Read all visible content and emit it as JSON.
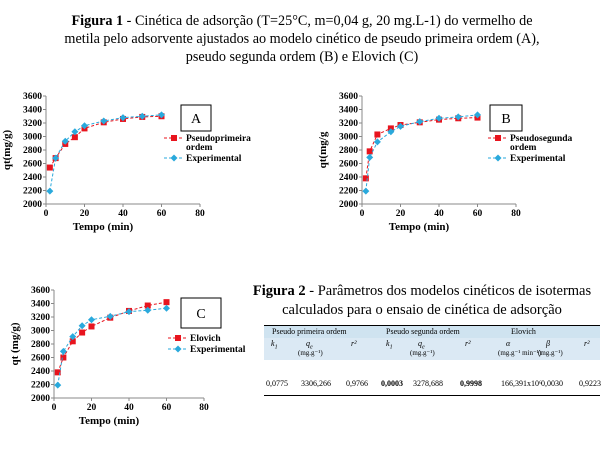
{
  "figure1": {
    "caption_bold": "Figura 1",
    "caption_rest_line1": " - Cinética de adsorção (T=25°C, m=0,04 g, 20 mg.L-1) do vermelho de",
    "caption_line2": "metila pelo adsorvente ajustados ao modelo cinético de pseudo primeira ordem (A),",
    "caption_line3": "pseudo segunda ordem (B) e Elovich (C)"
  },
  "figure2": {
    "caption_bold": "Figura 2",
    "caption_rest_line1": " - Parâmetros dos modelos cinéticos de isotermas",
    "caption_line2": "calculados para o ensaio de cinética de adsorção"
  },
  "chart_data": [
    {
      "type": "line",
      "panel_label": "A",
      "xlabel": "Tempo (min)",
      "ylabel": "qt(mg/g)",
      "xlim": [
        0,
        80
      ],
      "ylim": [
        2000,
        3600
      ],
      "xticks": [
        "0",
        "20",
        "40",
        "60",
        "80"
      ],
      "yticks": [
        "2000",
        "2200",
        "2400",
        "2600",
        "2800",
        "3000",
        "3200",
        "3400",
        "3600"
      ],
      "legend_position": "right",
      "colors": {
        "model": "#e8141e",
        "experimental": "#2aa9dc"
      },
      "series": [
        {
          "name": "Pseudoprimeira ordem",
          "x": [
            2,
            5,
            10,
            15,
            20,
            30,
            40,
            50,
            60
          ],
          "y": [
            2540,
            2680,
            2890,
            2990,
            3120,
            3210,
            3260,
            3290,
            3300
          ]
        },
        {
          "name": "Experimental",
          "x": [
            2,
            5,
            10,
            15,
            20,
            30,
            40,
            50,
            60
          ],
          "y": [
            2190,
            2680,
            2930,
            3070,
            3160,
            3230,
            3280,
            3300,
            3320
          ]
        }
      ]
    },
    {
      "type": "line",
      "panel_label": "B",
      "xlabel": "Tempo (min)",
      "ylabel": "qt(mg/g",
      "xlim": [
        0,
        80
      ],
      "ylim": [
        2000,
        3600
      ],
      "xticks": [
        "0",
        "20",
        "40",
        "60",
        "80"
      ],
      "yticks": [
        "2000",
        "2200",
        "2400",
        "2600",
        "2800",
        "3000",
        "3200",
        "3400",
        "3600"
      ],
      "legend_position": "right",
      "colors": {
        "model": "#e8141e",
        "experimental": "#2aa9dc"
      },
      "series": [
        {
          "name": "Pseudosegunda ordem",
          "x": [
            2,
            4,
            8,
            15,
            20,
            30,
            40,
            50,
            60
          ],
          "y": [
            2380,
            2780,
            3030,
            3120,
            3170,
            3210,
            3250,
            3270,
            3280
          ]
        },
        {
          "name": "Experimental",
          "x": [
            2,
            4,
            8,
            15,
            20,
            30,
            40,
            50,
            60
          ],
          "y": [
            2190,
            2690,
            2920,
            3070,
            3150,
            3220,
            3270,
            3290,
            3320
          ]
        }
      ]
    },
    {
      "type": "line",
      "panel_label": "C",
      "xlabel": "Tempo (min)",
      "ylabel": "qt (mg/g)",
      "xlim": [
        0,
        80
      ],
      "ylim": [
        2000,
        3600
      ],
      "xticks": [
        "0",
        "20",
        "40",
        "60",
        "80"
      ],
      "yticks": [
        "2000",
        "2200",
        "2400",
        "2600",
        "2800",
        "3000",
        "3200",
        "3400",
        "3600"
      ],
      "legend_position": "right",
      "colors": {
        "model": "#e8141e",
        "experimental": "#2aa9dc"
      },
      "series": [
        {
          "name": "Elovich",
          "x": [
            2,
            5,
            10,
            15,
            20,
            30,
            40,
            50,
            60
          ],
          "y": [
            2380,
            2600,
            2840,
            2970,
            3060,
            3190,
            3290,
            3370,
            3420
          ]
        },
        {
          "name": "Experimental",
          "x": [
            2,
            5,
            10,
            15,
            20,
            30,
            40,
            50,
            60
          ],
          "y": [
            2190,
            2690,
            2910,
            3070,
            3160,
            3210,
            3280,
            3300,
            3330
          ]
        }
      ]
    }
  ],
  "table": {
    "groups": [
      "Pseudo primeira ordem",
      "Pseudo segunda ordem",
      "Elovich"
    ],
    "columns": [
      {
        "symbol": "k",
        "sub": "1",
        "unit": ""
      },
      {
        "symbol": "q",
        "sub": "e",
        "unit": "(mg.g⁻¹)"
      },
      {
        "symbol": "r²",
        "sub": "",
        "unit": ""
      },
      {
        "symbol": "k",
        "sub": "1",
        "unit": ""
      },
      {
        "symbol": "q",
        "sub": "e",
        "unit": "(mg.g⁻¹)"
      },
      {
        "symbol": "r²",
        "sub": "",
        "unit": ""
      },
      {
        "symbol": "α",
        "sub": "",
        "unit": "(mg.g⁻¹ min⁻¹)"
      },
      {
        "symbol": "β",
        "sub": "",
        "unit": "(mg.g⁻¹)"
      },
      {
        "symbol": "r²",
        "sub": "",
        "unit": ""
      }
    ],
    "values": [
      "0,0775",
      "3306,266",
      "0,9766",
      "0,0003",
      "3278,688",
      "0,9998",
      "166,391x10⁶",
      "0,0030",
      "0,9223"
    ]
  }
}
